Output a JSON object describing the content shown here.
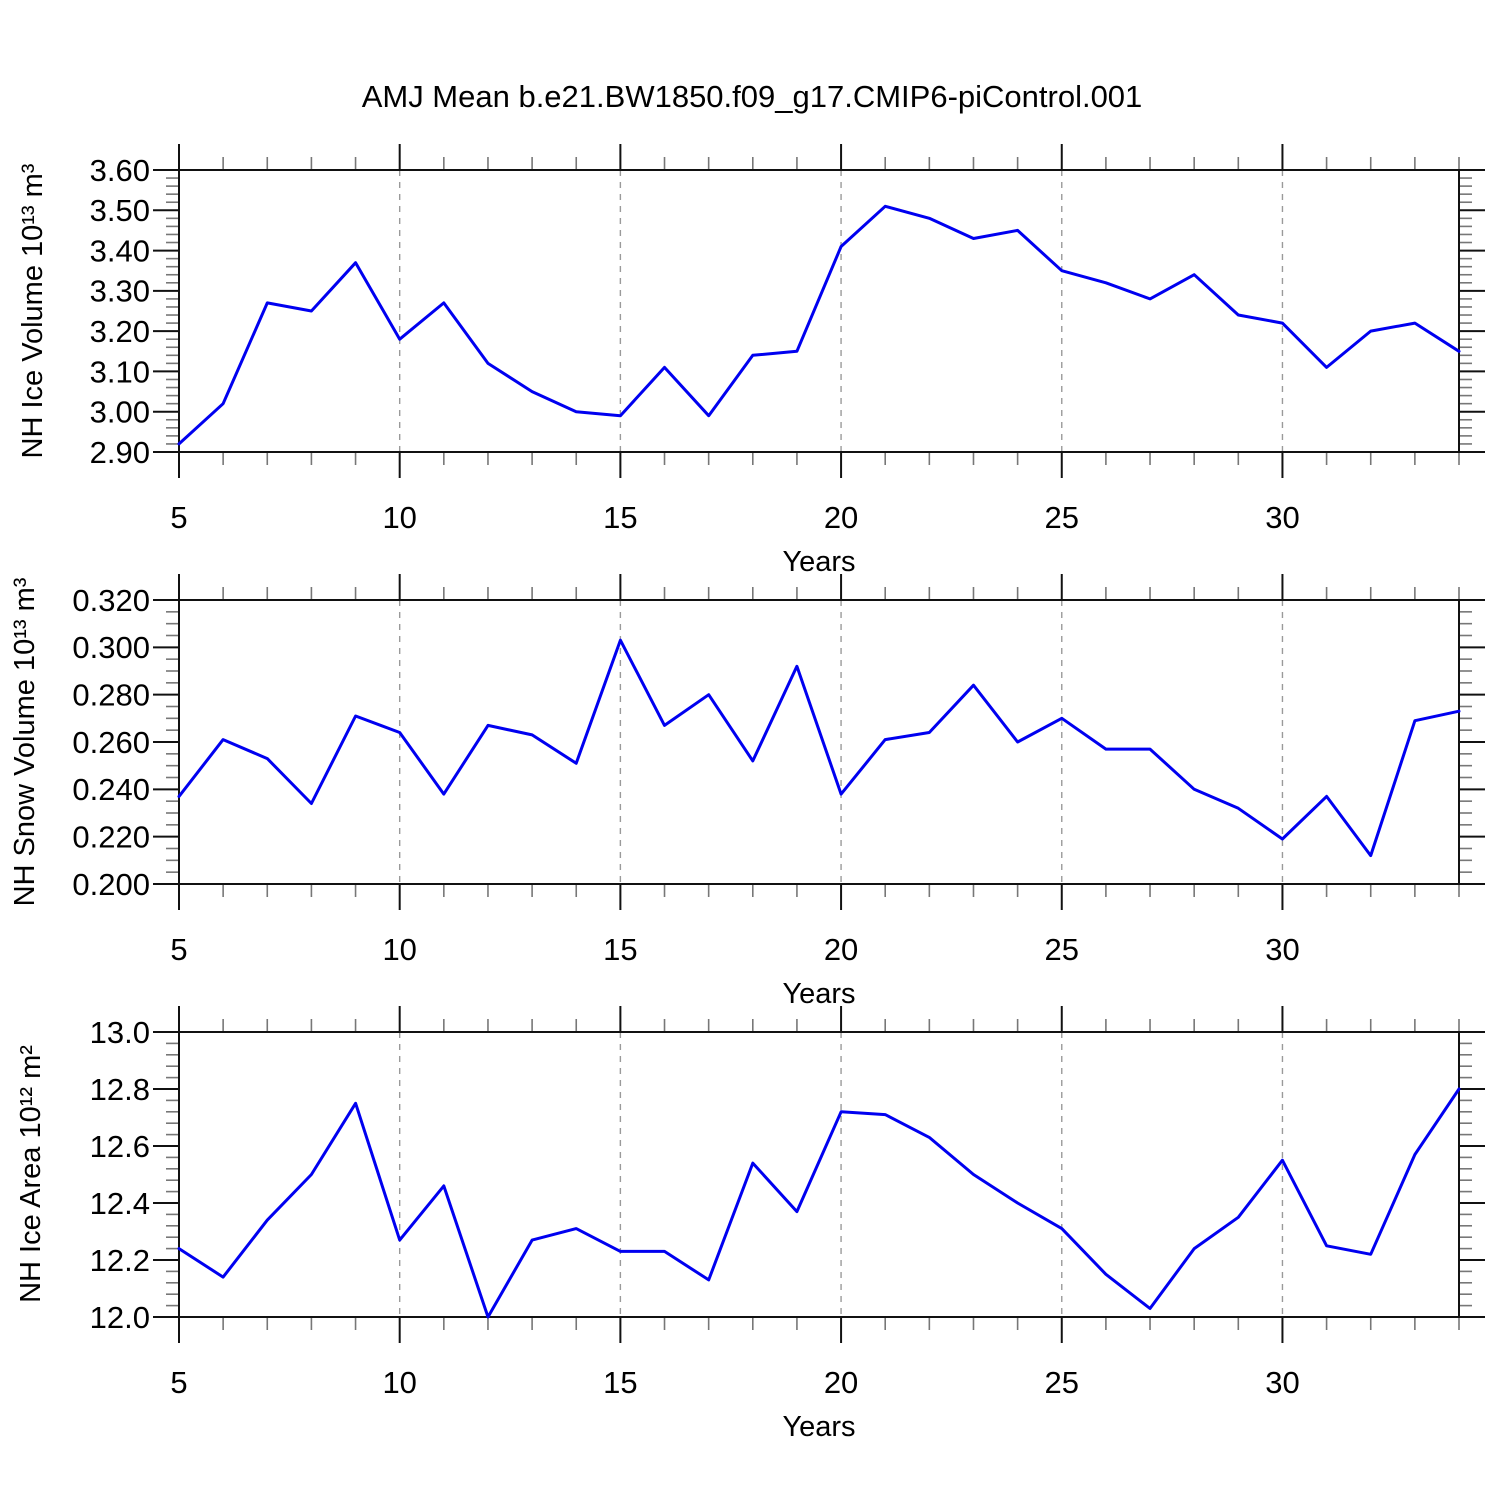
{
  "title": "AMJ Mean b.e21.BW1850.f09_g17.CMIP6-piControl.001",
  "colors": {
    "line": "#0000f0",
    "axis": "#111111",
    "minor_tick": "#777777",
    "grid": "#9a9a9a",
    "text": "#000000"
  },
  "x_axis": {
    "label": "Years",
    "min": 5,
    "max": 34,
    "tick_values": [
      5,
      10,
      15,
      20,
      25,
      30
    ],
    "tick_labels": [
      "5",
      "10",
      "15",
      "20",
      "25",
      "30"
    ],
    "minor_step": 1,
    "grid_years": [
      10,
      15,
      20,
      25,
      30
    ]
  },
  "chart_data": [
    {
      "type": "line",
      "name": "nh-ice-volume",
      "ylabel": "NH Ice Volume 10¹³ m³",
      "xlabel": "Years",
      "ylim": [
        2.9,
        3.6
      ],
      "y_tick_values": [
        3.6,
        3.5,
        3.4,
        3.3,
        3.2,
        3.1,
        3.0,
        2.9
      ],
      "y_tick_labels": [
        "3.60",
        "3.50",
        "3.40",
        "3.30",
        "3.20",
        "3.10",
        "3.00",
        "2.90"
      ],
      "y_minor_step": 0.02,
      "x": [
        5,
        6,
        7,
        8,
        9,
        10,
        11,
        12,
        13,
        14,
        15,
        16,
        17,
        18,
        19,
        20,
        21,
        22,
        23,
        24,
        25,
        26,
        27,
        28,
        29,
        30,
        31,
        32,
        33,
        34
      ],
      "values": [
        2.92,
        3.02,
        3.27,
        3.25,
        3.37,
        3.18,
        3.27,
        3.12,
        3.05,
        3.0,
        2.99,
        3.11,
        2.99,
        3.14,
        3.15,
        3.41,
        3.51,
        3.48,
        3.43,
        3.45,
        3.35,
        3.32,
        3.28,
        3.34,
        3.24,
        3.22,
        3.11,
        3.2,
        3.22,
        3.15
      ]
    },
    {
      "type": "line",
      "name": "nh-snow-volume",
      "ylabel": "NH Snow Volume 10¹³ m³",
      "xlabel": "Years",
      "ylim": [
        0.2,
        0.32
      ],
      "y_tick_values": [
        0.32,
        0.3,
        0.28,
        0.26,
        0.24,
        0.22,
        0.2
      ],
      "y_tick_labels": [
        "0.320",
        "0.300",
        "0.280",
        "0.260",
        "0.240",
        "0.220",
        "0.200"
      ],
      "y_minor_step": 0.005,
      "x": [
        5,
        6,
        7,
        8,
        9,
        10,
        11,
        12,
        13,
        14,
        15,
        16,
        17,
        18,
        19,
        20,
        21,
        22,
        23,
        24,
        25,
        26,
        27,
        28,
        29,
        30,
        31,
        32,
        33,
        34
      ],
      "values": [
        0.237,
        0.261,
        0.253,
        0.234,
        0.271,
        0.264,
        0.238,
        0.267,
        0.263,
        0.251,
        0.303,
        0.267,
        0.28,
        0.252,
        0.292,
        0.238,
        0.261,
        0.264,
        0.284,
        0.26,
        0.27,
        0.257,
        0.257,
        0.24,
        0.232,
        0.219,
        0.237,
        0.212,
        0.269,
        0.273
      ]
    },
    {
      "type": "line",
      "name": "nh-ice-area",
      "ylabel": "NH Ice Area 10¹² m²",
      "xlabel": "Years",
      "ylim": [
        12.0,
        13.0
      ],
      "y_tick_values": [
        13.0,
        12.8,
        12.6,
        12.4,
        12.2,
        12.0
      ],
      "y_tick_labels": [
        "13.0",
        "12.8",
        "12.6",
        "12.4",
        "12.2",
        "12.0"
      ],
      "y_minor_step": 0.04,
      "x": [
        5,
        6,
        7,
        8,
        9,
        10,
        11,
        12,
        13,
        14,
        15,
        16,
        17,
        18,
        19,
        20,
        21,
        22,
        23,
        24,
        25,
        26,
        27,
        28,
        29,
        30,
        31,
        32,
        33,
        34
      ],
      "values": [
        12.24,
        12.14,
        12.34,
        12.5,
        12.75,
        12.27,
        12.46,
        12.0,
        12.27,
        12.31,
        12.23,
        12.23,
        12.13,
        12.54,
        12.37,
        12.72,
        12.71,
        12.63,
        12.5,
        12.4,
        12.31,
        12.15,
        12.03,
        12.24,
        12.35,
        12.55,
        12.25,
        12.22,
        12.57,
        12.8
      ]
    }
  ]
}
